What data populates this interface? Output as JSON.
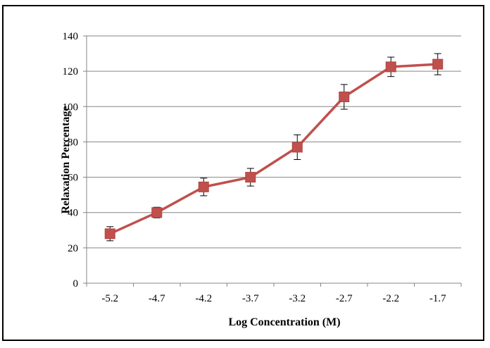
{
  "chart_data": {
    "type": "line",
    "title": "",
    "xlabel": "Log Concentration (M)",
    "ylabel": "Relaxation Percentage",
    "categories": [
      "-5.2",
      "-4.7",
      "-4.2",
      "-3.7",
      "-3.2",
      "-2.7",
      "-2.2",
      "-1.7"
    ],
    "series": [
      {
        "values": [
          28,
          40,
          54.5,
          60,
          77,
          105.5,
          122.5,
          124
        ],
        "error": [
          4,
          3,
          5,
          5,
          7,
          7,
          5.5,
          6
        ]
      }
    ],
    "ylim": [
      0,
      140
    ],
    "yticks": [
      "0",
      "20",
      "40",
      "60",
      "80",
      "100",
      "120",
      "140"
    ],
    "grid": "horizontal",
    "legend": "none",
    "series_color": "#c0504d",
    "marker": "square"
  }
}
